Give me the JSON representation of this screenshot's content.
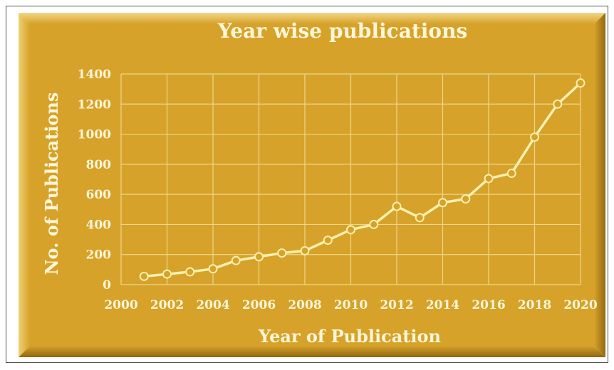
{
  "chart_data": {
    "type": "line",
    "title": "Year wise publications",
    "xlabel": "Year of Publication",
    "ylabel": "No. of Publications",
    "xlim": [
      2000,
      2020
    ],
    "ylim": [
      0,
      1400
    ],
    "x_ticks": [
      "2000",
      "2002",
      "2004",
      "2006",
      "2008",
      "2010",
      "2012",
      "2014",
      "2016",
      "2018",
      "2020"
    ],
    "y_ticks": [
      "0",
      "200",
      "400",
      "600",
      "800",
      "1000",
      "1200",
      "1400"
    ],
    "grid": true,
    "series": [
      {
        "x": [
          2001,
          2002,
          2003,
          2004,
          2005,
          2006,
          2007,
          2008,
          2009,
          2010,
          2011,
          2012,
          2013,
          2014,
          2015,
          2016,
          2017,
          2018,
          2019,
          2020
        ],
        "values": [
          55,
          70,
          85,
          105,
          160,
          185,
          210,
          225,
          295,
          365,
          400,
          520,
          445,
          545,
          570,
          705,
          740,
          980,
          1200,
          1340
        ]
      }
    ]
  },
  "colors": {
    "panel": "#d6a22a",
    "panel_light": "#f1cf6d",
    "panel_dark": "#9c7211",
    "line": "#fbf0b0",
    "grid": "#efd68a",
    "text": "#fdf6d8"
  }
}
